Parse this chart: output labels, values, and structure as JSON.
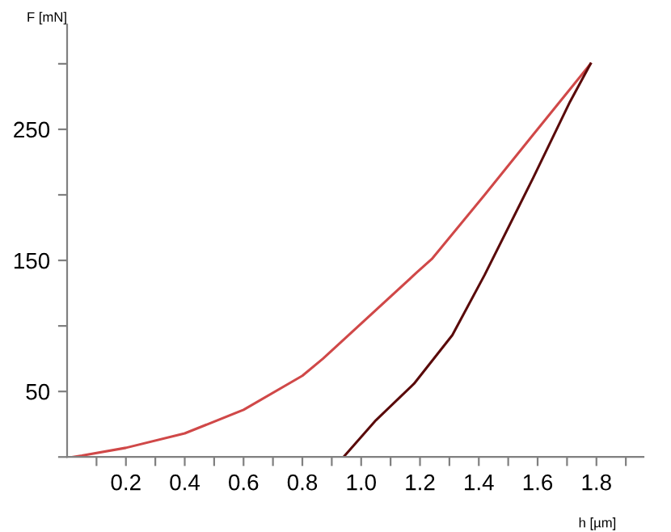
{
  "chart_data": {
    "type": "line",
    "xlabel": "h [µm]",
    "ylabel": "F [mN]",
    "xlim": [
      0,
      1.96
    ],
    "ylim": [
      0,
      330
    ],
    "xticks": [
      {
        "value": 0.1,
        "label": null
      },
      0.2,
      {
        "value": 0.3,
        "label": null
      },
      0.4,
      {
        "value": 0.5,
        "label": null
      },
      0.6,
      {
        "value": 0.7,
        "label": null
      },
      0.8,
      {
        "value": 0.9,
        "label": null
      },
      {
        "value": 1.0,
        "label": "1.0"
      },
      {
        "value": 1.1,
        "label": null
      },
      1.2,
      {
        "value": 1.3,
        "label": null
      },
      1.4,
      {
        "value": 1.5,
        "label": null
      },
      1.6,
      {
        "value": 1.7,
        "label": null
      },
      1.8,
      {
        "value": 1.9,
        "label": null
      }
    ],
    "yticks": [
      {
        "value": 0,
        "label": null
      },
      50,
      {
        "value": 100,
        "label": null
      },
      150,
      {
        "value": 200,
        "label": null
      },
      250,
      {
        "value": 300,
        "label": null
      }
    ],
    "grid": false,
    "legend": false,
    "series": [
      {
        "color": "#d04848",
        "x": [
          0.02,
          0.05,
          0.2,
          0.4,
          0.6,
          0.8,
          0.87,
          1.19,
          1.24,
          1.42,
          1.585,
          1.78
        ],
        "values": [
          0,
          1,
          7,
          18,
          36,
          62,
          75,
          141,
          151,
          200,
          246,
          300
        ]
      },
      {
        "color": "#5a0a0a",
        "x": [
          0.94,
          1.05,
          1.18,
          1.31,
          1.42,
          1.585,
          1.71,
          1.78
        ],
        "values": [
          0,
          28,
          56,
          93,
          139,
          213,
          271,
          300
        ]
      }
    ]
  }
}
